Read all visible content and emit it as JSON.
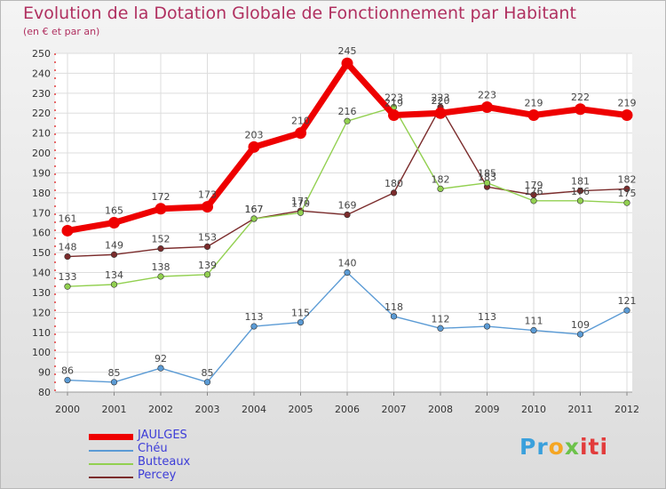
{
  "chart_data": {
    "type": "line",
    "title": "Evolution de la Dotation Globale de Fonctionnement par Habitant",
    "subtitle": "(en € et par an)",
    "xlabel": "",
    "ylabel": "",
    "ylim": [
      80,
      250
    ],
    "yticks": [
      80,
      90,
      100,
      110,
      120,
      130,
      140,
      150,
      160,
      170,
      180,
      190,
      200,
      210,
      220,
      230,
      240,
      250
    ],
    "categories": [
      "2000",
      "2001",
      "2002",
      "2003",
      "2004",
      "2005",
      "2006",
      "2007",
      "2008",
      "2009",
      "2010",
      "2011",
      "2012"
    ],
    "series": [
      {
        "name": "JAULGES",
        "color": "#ee0000",
        "values": [
          161,
          165,
          172,
          173,
          203,
          210,
          245,
          219,
          220,
          223,
          219,
          222,
          219
        ]
      },
      {
        "name": "Chéu",
        "color": "#5b9bd5",
        "values": [
          86,
          85,
          92,
          85,
          113,
          115,
          140,
          118,
          112,
          113,
          111,
          109,
          121
        ]
      },
      {
        "name": "Butteaux",
        "color": "#92d050",
        "values": [
          133,
          134,
          138,
          139,
          167,
          170,
          216,
          223,
          182,
          185,
          176,
          176,
          175
        ]
      },
      {
        "name": "Percey",
        "color": "#7b2c2c",
        "values": [
          148,
          149,
          152,
          153,
          167,
          171,
          169,
          180,
          223,
          183,
          179,
          181,
          182
        ]
      }
    ]
  },
  "brand": {
    "letters": [
      "Pr",
      "o",
      "x",
      "iti"
    ]
  }
}
